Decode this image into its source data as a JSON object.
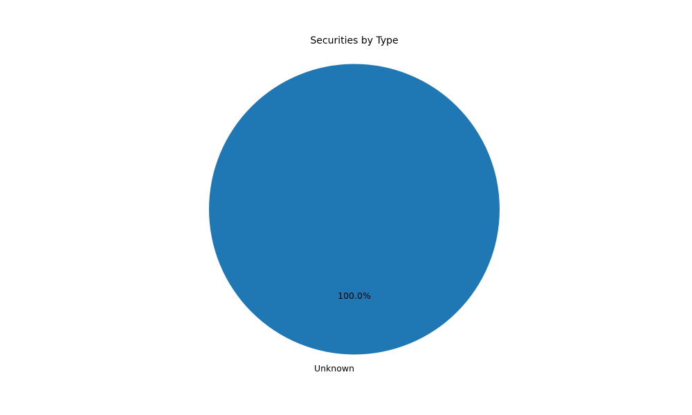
{
  "chart_data": {
    "type": "pie",
    "title": "Securities by Type",
    "slices": [
      {
        "label": "Unknown",
        "value": 1,
        "percent_label": "100.0%",
        "color": "#1f77b4"
      }
    ]
  }
}
